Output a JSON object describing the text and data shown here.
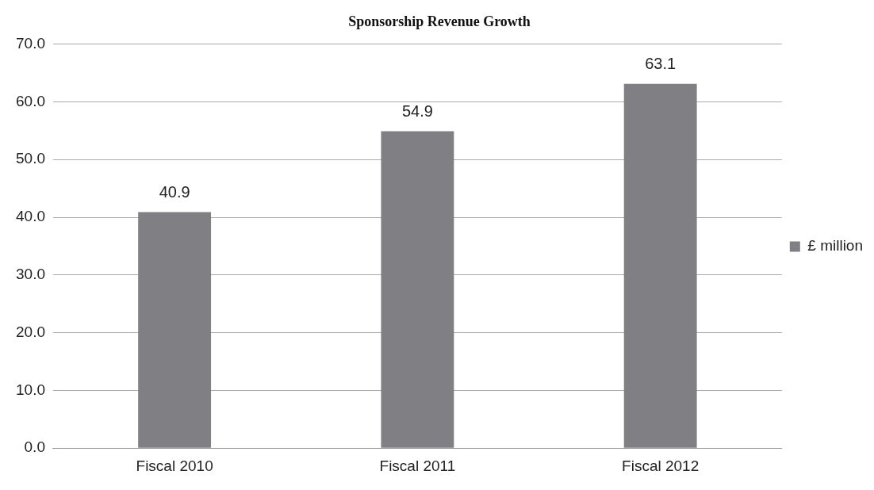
{
  "chart_data": {
    "type": "bar",
    "title": "Sponsorship Revenue Growth",
    "categories": [
      "Fiscal 2010",
      "Fiscal 2011",
      "Fiscal 2012"
    ],
    "series": [
      {
        "name": "£ million",
        "color": "#808084",
        "values": [
          40.9,
          54.9,
          63.1
        ]
      }
    ],
    "ylim": [
      0,
      70
    ],
    "yticks": [
      {
        "value": 0,
        "label": "0.0"
      },
      {
        "value": 10,
        "label": "10.0"
      },
      {
        "value": 20,
        "label": "20.0"
      },
      {
        "value": 30,
        "label": "30.0"
      },
      {
        "value": 40,
        "label": "40.0"
      },
      {
        "value": 50,
        "label": "50.0"
      },
      {
        "value": 60,
        "label": "60.0"
      },
      {
        "value": 70,
        "label": "70.0"
      }
    ],
    "grid": "y",
    "legend": "right",
    "data_labels": true
  }
}
